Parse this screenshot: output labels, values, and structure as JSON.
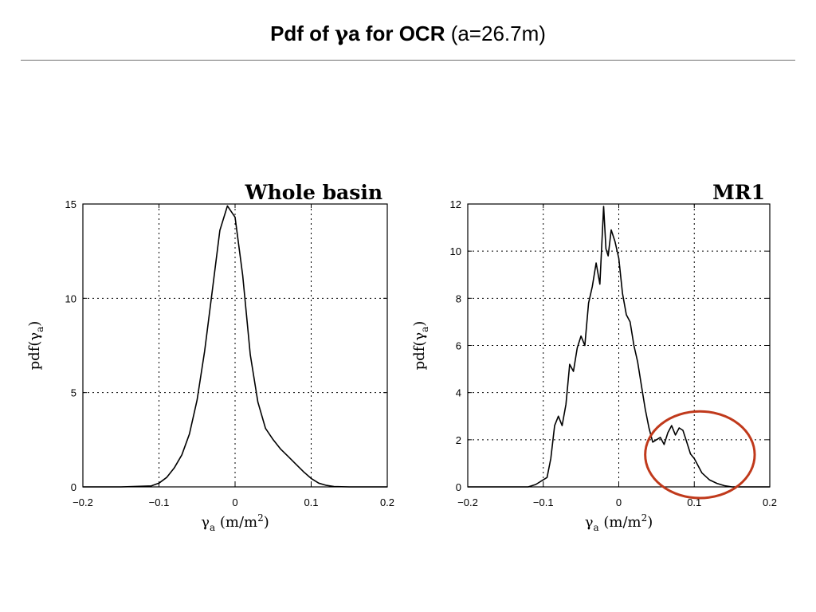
{
  "slide": {
    "title_bold_prefix": "Pdf of ",
    "title_gamma": "γ",
    "title_bold_suffix": "a for OCR",
    "title_normal": " (a=26.7m)"
  },
  "chart_data": [
    {
      "type": "line",
      "title": "Whole basin",
      "xlabel_symbol": "γ",
      "xlabel_sub": "a",
      "xlabel_units": " (m/m",
      "xlabel_sup": "2",
      "xlabel_close": ")",
      "ylabel_main": "pdf(γ",
      "ylabel_sub": "a",
      "ylabel_close": ")",
      "xlim": [
        -0.2,
        0.2
      ],
      "ylim": [
        0,
        15
      ],
      "xticks": [
        -0.2,
        -0.1,
        0,
        0.1,
        0.2
      ],
      "xtick_labels": [
        "−0.2",
        "−0.1",
        "0",
        "0.1",
        "0.2"
      ],
      "yticks": [
        0,
        5,
        10,
        15
      ],
      "ytick_labels": [
        "0",
        "5",
        "10",
        "15"
      ],
      "grid": true,
      "series": [
        {
          "x": [
            -0.2,
            -0.15,
            -0.11,
            -0.1,
            -0.09,
            -0.08,
            -0.07,
            -0.06,
            -0.05,
            -0.04,
            -0.03,
            -0.02,
            -0.01,
            0.0,
            0.01,
            0.02,
            0.03,
            0.04,
            0.05,
            0.06,
            0.07,
            0.08,
            0.09,
            0.1,
            0.11,
            0.12,
            0.13,
            0.15,
            0.2
          ],
          "y": [
            0,
            0,
            0.05,
            0.2,
            0.5,
            1.0,
            1.7,
            2.8,
            4.6,
            7.2,
            10.4,
            13.6,
            14.9,
            14.3,
            11.2,
            7.0,
            4.5,
            3.1,
            2.5,
            2.0,
            1.6,
            1.2,
            0.8,
            0.45,
            0.2,
            0.08,
            0.02,
            0,
            0
          ]
        }
      ]
    },
    {
      "type": "line",
      "title": "MR1",
      "xlabel_symbol": "γ",
      "xlabel_sub": "a",
      "xlabel_units": " (m/m",
      "xlabel_sup": "2",
      "xlabel_close": ")",
      "ylabel_main": "pdf(γ",
      "ylabel_sub": "a",
      "ylabel_close": ")",
      "xlim": [
        -0.2,
        0.2
      ],
      "ylim": [
        0,
        12
      ],
      "xticks": [
        -0.2,
        -0.1,
        0,
        0.1,
        0.2
      ],
      "xtick_labels": [
        "−0.2",
        "−0.1",
        "0",
        "0.1",
        "0.2"
      ],
      "yticks": [
        0,
        2,
        4,
        6,
        8,
        10,
        12
      ],
      "ytick_labels": [
        "0",
        "2",
        "4",
        "6",
        "8",
        "10",
        "12"
      ],
      "grid": true,
      "highlight": {
        "shape": "ellipse",
        "color": "#c0391b",
        "x_range": [
          0.035,
          0.18
        ],
        "y_range": [
          0,
          3.0
        ]
      },
      "series": [
        {
          "x": [
            -0.2,
            -0.12,
            -0.11,
            -0.1,
            -0.095,
            -0.09,
            -0.085,
            -0.08,
            -0.075,
            -0.07,
            -0.065,
            -0.06,
            -0.055,
            -0.05,
            -0.045,
            -0.04,
            -0.035,
            -0.03,
            -0.025,
            -0.02,
            -0.017,
            -0.014,
            -0.01,
            -0.005,
            0.0,
            0.005,
            0.01,
            0.015,
            0.02,
            0.025,
            0.03,
            0.035,
            0.04,
            0.045,
            0.05,
            0.055,
            0.06,
            0.065,
            0.07,
            0.075,
            0.08,
            0.085,
            0.09,
            0.095,
            0.1,
            0.105,
            0.11,
            0.12,
            0.13,
            0.14,
            0.15,
            0.2
          ],
          "y": [
            0,
            0,
            0.1,
            0.3,
            0.4,
            1.2,
            2.6,
            3.0,
            2.6,
            3.5,
            5.2,
            4.9,
            5.9,
            6.4,
            6.0,
            7.8,
            8.5,
            9.5,
            8.6,
            11.9,
            10.1,
            9.8,
            10.9,
            10.4,
            9.7,
            8.2,
            7.3,
            7.0,
            6.0,
            5.3,
            4.3,
            3.3,
            2.5,
            1.9,
            2.0,
            2.1,
            1.8,
            2.3,
            2.6,
            2.2,
            2.5,
            2.4,
            1.9,
            1.4,
            1.2,
            0.9,
            0.6,
            0.3,
            0.15,
            0.05,
            0,
            0
          ]
        }
      ]
    }
  ]
}
